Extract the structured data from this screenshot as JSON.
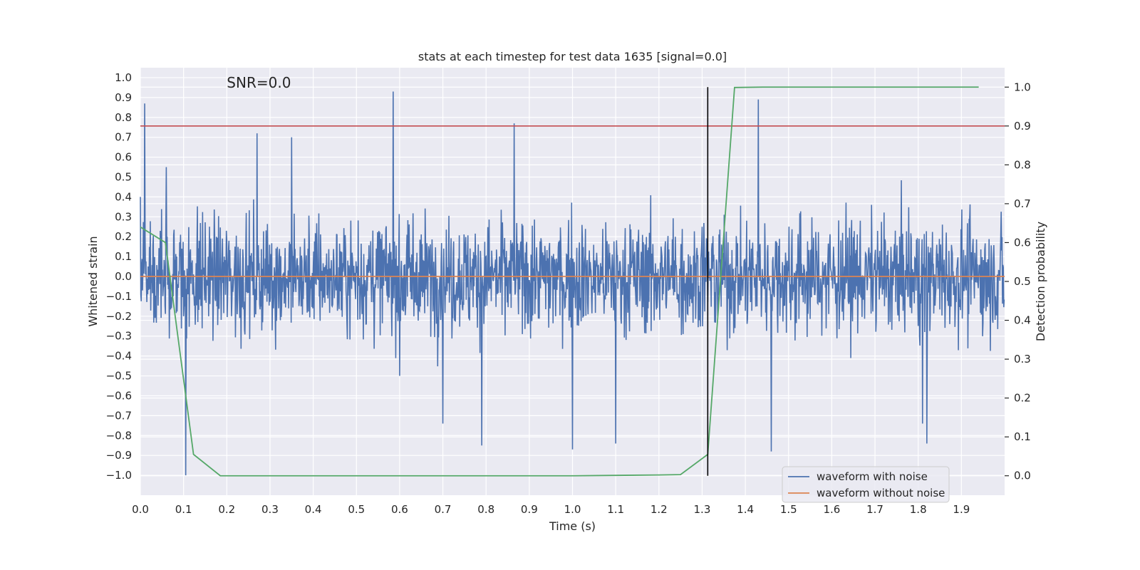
{
  "chart_data": {
    "type": "line",
    "title": "stats at each timestep for test data 1635 [signal=0.0]",
    "xlabel": "Time (s)",
    "ylabel": "Whitened strain",
    "y2label": "Detection probability",
    "annotation": "SNR=0.0",
    "xlim": [
      0.0,
      2.0
    ],
    "ylim": [
      -1.1,
      1.05
    ],
    "y2lim": [
      -0.05,
      1.05
    ],
    "xticks": [
      "0.0",
      "0.1",
      "0.2",
      "0.3",
      "0.4",
      "0.5",
      "0.6",
      "0.7",
      "0.8",
      "0.9",
      "1.0",
      "1.1",
      "1.2",
      "1.3",
      "1.4",
      "1.5",
      "1.6",
      "1.7",
      "1.8",
      "1.9"
    ],
    "yticks": [
      "1.0",
      "0.9",
      "0.8",
      "0.7",
      "0.6",
      "0.5",
      "0.4",
      "0.3",
      "0.2",
      "0.1",
      "0.0",
      "−0.1",
      "−0.2",
      "−0.3",
      "−0.4",
      "−0.5",
      "−0.6",
      "−0.7",
      "−0.8",
      "−0.9",
      "−1.0"
    ],
    "y2ticks": [
      "1.0",
      "0.9",
      "0.8",
      "0.7",
      "0.6",
      "0.5",
      "0.4",
      "0.3",
      "0.2",
      "0.1",
      "0.0"
    ],
    "grid": true,
    "legend_position": "lower-right",
    "series": [
      {
        "name": "waveform with noise",
        "color": "#4c72b0",
        "axis": "left",
        "note": "dense noise ~1800 samples spanning t=0.0-2.0 s, amplitude mostly within ±0.6 with spikes",
        "x": [
          0.0,
          0.01,
          0.06,
          0.1,
          0.105,
          0.27,
          0.35,
          0.585,
          0.6,
          0.7,
          0.79,
          0.865,
          1.0,
          1.1,
          1.3,
          1.43,
          1.46,
          1.81,
          1.82,
          1.99
        ],
        "y": [
          0.4,
          0.87,
          0.55,
          -0.2,
          -1.0,
          0.72,
          0.7,
          0.93,
          -0.5,
          -0.74,
          -0.85,
          0.77,
          -0.87,
          -0.84,
          0.25,
          0.89,
          -0.88,
          -0.74,
          -0.84,
          0.1
        ]
      },
      {
        "name": "waveform without noise",
        "color": "#dd8452",
        "axis": "left",
        "x": [
          0.0,
          2.0
        ],
        "y": [
          0.0,
          0.0
        ]
      },
      {
        "name": "",
        "color": "#55a868",
        "axis": "right",
        "x": [
          0.0,
          0.058,
          0.123,
          0.185,
          0.25,
          0.5,
          0.75,
          1.0,
          1.1,
          1.2,
          1.25,
          1.313,
          1.375,
          1.44,
          1.5,
          1.6,
          1.7,
          1.8,
          1.9,
          1.94
        ],
        "y": [
          0.64,
          0.6,
          0.055,
          0.0,
          0.0,
          0.0,
          0.0,
          0.0,
          0.001,
          0.002,
          0.003,
          0.055,
          0.999,
          1.0,
          1.0,
          1.0,
          1.0,
          1.0,
          1.0,
          1.0
        ]
      }
    ],
    "threshold": {
      "color": "#c44e52",
      "axis": "right",
      "value": 0.9
    },
    "marker": {
      "color": "#000000",
      "x": 1.313,
      "ylim": [
        0.0,
        1.0
      ]
    }
  }
}
